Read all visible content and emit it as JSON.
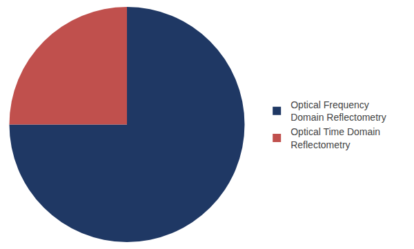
{
  "chart_data": {
    "type": "pie",
    "categories": [
      "Optical Frequency\nDomain Reflectometry",
      "Optical Time Domain\nReflectometry"
    ],
    "values": [
      75,
      25
    ],
    "colors": [
      "#1F3864",
      "#C0504D"
    ],
    "legend": "right"
  }
}
